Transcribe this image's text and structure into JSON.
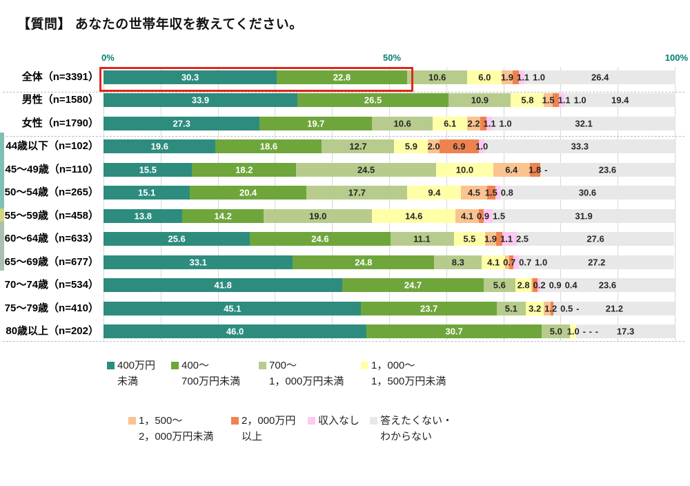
{
  "chart_data": {
    "type": "bar",
    "subtype": "horizontal-stacked-100pct",
    "title": "【質問】 あなたの世帯年収を教えてください。",
    "x_axis": {
      "ticks": [
        "0%",
        "50%",
        "100%"
      ],
      "range": [
        0,
        100
      ],
      "gridline_step_pct": 10,
      "grid": true
    },
    "legend_position": "bottom",
    "legend": [
      {
        "name": "400万円未満",
        "lines": [
          "400万円",
          "未満"
        ],
        "color": "#2D8C7E"
      },
      {
        "name": "400～700万円未満",
        "lines": [
          "400～",
          "700万円未満"
        ],
        "color": "#6FA63C"
      },
      {
        "name": "700～1,000万円未満",
        "lines": [
          "700～",
          "1，000万円未満"
        ],
        "color": "#B7CC8C"
      },
      {
        "name": "1,000～1,500万円未満",
        "lines": [
          "1，000～",
          "1，500万円未満"
        ],
        "color": "#FFFFA8"
      },
      {
        "name": "1,500～2,000万円未満",
        "lines": [
          "1，500～",
          "2，000万円未満"
        ],
        "color": "#FAC38F"
      },
      {
        "name": "2,000万円以上",
        "lines": [
          "2，000万円",
          "以上"
        ],
        "color": "#EF8350"
      },
      {
        "name": "収入なし",
        "lines": [
          "収入なし"
        ],
        "color": "#FBC9F1"
      },
      {
        "name": "答えたくない・わからない",
        "lines": [
          "答えたくない・",
          "わからない"
        ],
        "color": "#E8E8E8"
      }
    ],
    "value_label_colors": {
      "on_dark": "#ffffff",
      "on_light": "#262626"
    },
    "highlight": {
      "row": "全体（n=3391）",
      "segments": [
        "400万円未満",
        "400～700万円未満"
      ],
      "color": "#E3251B"
    },
    "rows": [
      {
        "label": "全体（n=3391）",
        "values": [
          30.3,
          22.8,
          10.6,
          6.0,
          1.9,
          1.1,
          1.0,
          26.4
        ],
        "display": [
          "30.3",
          "22.8",
          "10.6",
          "6.0",
          "1.9",
          "1.1",
          "1.0",
          "26.4"
        ]
      },
      {
        "label": "男性（n=1580）",
        "values": [
          33.9,
          26.5,
          10.9,
          5.8,
          1.5,
          1.1,
          1.0,
          19.4
        ],
        "display": [
          "33.9",
          "26.5",
          "10.9",
          "5.8",
          "1.5",
          "1.1",
          "1.0",
          "19.4"
        ]
      },
      {
        "label": "女性（n=1790）",
        "values": [
          27.3,
          19.7,
          10.6,
          6.1,
          2.2,
          1.1,
          1.0,
          32.1
        ],
        "display": [
          "27.3",
          "19.7",
          "10.6",
          "6.1",
          "2.2",
          "1.1",
          "1.0",
          "32.1"
        ]
      },
      {
        "label": "44歳以下（n=102）",
        "values": [
          19.6,
          18.6,
          12.7,
          5.9,
          2.0,
          6.9,
          1.0,
          33.3
        ],
        "display": [
          "19.6",
          "18.6",
          "12.7",
          "5.9",
          "2.0",
          "6.9",
          "1.0",
          "33.3"
        ]
      },
      {
        "label": "45～49歳（n=110）",
        "values": [
          15.5,
          18.2,
          24.5,
          10.0,
          6.4,
          1.8,
          0,
          23.6
        ],
        "display": [
          "15.5",
          "18.2",
          "24.5",
          "10.0",
          "6.4",
          "1.8",
          "-",
          "23.6"
        ]
      },
      {
        "label": "50～54歳（n=265）",
        "values": [
          15.1,
          20.4,
          17.7,
          9.4,
          4.5,
          1.5,
          0.8,
          30.6
        ],
        "display": [
          "15.1",
          "20.4",
          "17.7",
          "9.4",
          "4.5",
          "1.5",
          "0.8",
          "30.6"
        ]
      },
      {
        "label": "55～59歳（n=458）",
        "values": [
          13.8,
          14.2,
          19.0,
          14.6,
          4.1,
          0.9,
          1.5,
          31.9
        ],
        "display": [
          "13.8",
          "14.2",
          "19.0",
          "14.6",
          "4.1",
          "0.9",
          "1.5",
          "31.9"
        ]
      },
      {
        "label": "60～64歳（n=633）",
        "values": [
          25.6,
          24.6,
          11.1,
          5.5,
          1.9,
          1.1,
          2.5,
          27.6
        ],
        "display": [
          "25.6",
          "24.6",
          "11.1",
          "5.5",
          "1.9",
          "1.1",
          "2.5",
          "27.6"
        ]
      },
      {
        "label": "65～69歳（n=677）",
        "values": [
          33.1,
          24.8,
          8.3,
          4.1,
          0.7,
          0.7,
          1.0,
          27.2
        ],
        "display": [
          "33.1",
          "24.8",
          "8.3",
          "4.1",
          "0.7",
          "0.7",
          "1.0",
          "27.2"
        ]
      },
      {
        "label": "70～74歳（n=534）",
        "values": [
          41.8,
          24.7,
          5.6,
          2.8,
          0.2,
          0.9,
          0.4,
          23.6
        ],
        "display": [
          "41.8",
          "24.7",
          "5.6",
          "2.8",
          "0.2",
          "0.9",
          "0.4",
          "23.6"
        ]
      },
      {
        "label": "75～79歳（n=410）",
        "values": [
          45.1,
          23.7,
          5.1,
          3.2,
          1.2,
          0.5,
          0,
          21.2
        ],
        "display": [
          "45.1",
          "23.7",
          "5.1",
          "3.2",
          "1.2",
          "0.5",
          "-",
          "21.2"
        ]
      },
      {
        "label": "80歳以上（n=202）",
        "values": [
          46.0,
          30.7,
          5.0,
          1.0,
          0,
          0,
          0,
          17.3
        ],
        "display": [
          "46.0",
          "30.7",
          "5.0",
          "1.0",
          "-",
          "-",
          "-",
          "17.3"
        ]
      }
    ],
    "separators_after_rows": [
      0,
      2,
      11
    ]
  }
}
